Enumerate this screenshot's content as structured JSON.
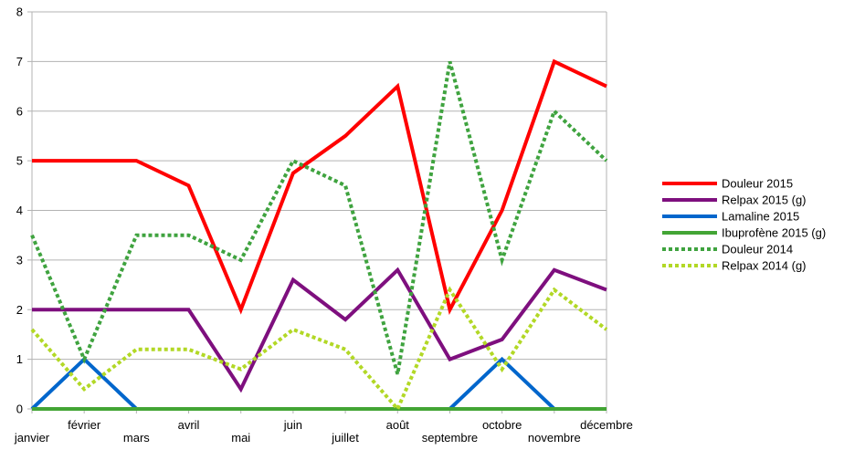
{
  "chart_data": {
    "type": "line",
    "categories": [
      "janvier",
      "février",
      "mars",
      "avril",
      "mai",
      "juin",
      "juillet",
      "août",
      "septembre",
      "octobre",
      "novembre",
      "décembre"
    ],
    "ylim": [
      0,
      8
    ],
    "yticks": [
      0,
      1,
      2,
      3,
      4,
      5,
      6,
      7,
      8
    ],
    "grid": "horizontal",
    "legend_position": "right",
    "series": [
      {
        "name": "Douleur 2015",
        "color": "#ff0000",
        "style": "solid",
        "values": [
          5,
          5,
          5,
          4.5,
          2,
          4.75,
          5.5,
          6.5,
          2,
          4,
          7,
          6.5
        ]
      },
      {
        "name": "Relpax 2015 (g)",
        "color": "#7e0f7e",
        "style": "solid",
        "values": [
          2,
          2,
          2,
          2,
          0.4,
          2.6,
          1.8,
          2.8,
          1,
          1.4,
          2.8,
          2.4
        ]
      },
      {
        "name": "Lamaline 2015",
        "color": "#0066cc",
        "style": "solid",
        "values": [
          0,
          1,
          0,
          0,
          0,
          0,
          0,
          0,
          0,
          1,
          0,
          0
        ]
      },
      {
        "name": "Ibuprofène 2015 (g)",
        "color": "#43a535",
        "style": "solid",
        "values": [
          0,
          0,
          0,
          0,
          0,
          0,
          0,
          0,
          0,
          0,
          0,
          0
        ]
      },
      {
        "name": "Douleur 2014",
        "color": "#3fa33f",
        "style": "dotted",
        "values": [
          3.5,
          1,
          3.5,
          3.5,
          3,
          5,
          4.5,
          0.7,
          7,
          3,
          6,
          5
        ]
      },
      {
        "name": "Relpax 2014 (g)",
        "color": "#b2d826",
        "style": "dotted",
        "values": [
          1.6,
          0.4,
          1.2,
          1.2,
          0.8,
          1.6,
          1.2,
          0,
          2.4,
          0.8,
          2.4,
          1.6
        ]
      }
    ]
  }
}
